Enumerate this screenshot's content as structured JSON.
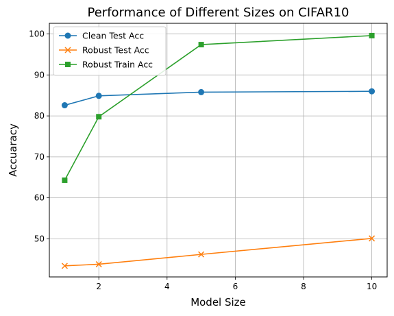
{
  "chart_data": {
    "type": "line",
    "title": "Performance of Different Sizes on CIFAR10",
    "xlabel": "Model Size",
    "ylabel": "Accuaracy",
    "x": [
      1,
      2,
      5,
      10
    ],
    "xlim": [
      0.55,
      10.45
    ],
    "ylim": [
      40.7,
      102.6
    ],
    "xticks": [
      2,
      4,
      6,
      8,
      10
    ],
    "yticks": [
      50,
      60,
      70,
      80,
      90,
      100
    ],
    "grid": true,
    "legend_position": "top-left",
    "series": [
      {
        "name": "Clean Test Acc",
        "color": "#1f77b4",
        "marker": "circle",
        "values": [
          82.6,
          84.9,
          85.8,
          86.0
        ]
      },
      {
        "name": "Robust Test Acc",
        "color": "#ff7f0e",
        "marker": "x",
        "values": [
          43.4,
          43.8,
          46.2,
          50.1
        ]
      },
      {
        "name": "Robust Train Acc",
        "color": "#2ca02c",
        "marker": "square",
        "values": [
          64.3,
          79.8,
          97.4,
          99.6
        ]
      }
    ]
  }
}
